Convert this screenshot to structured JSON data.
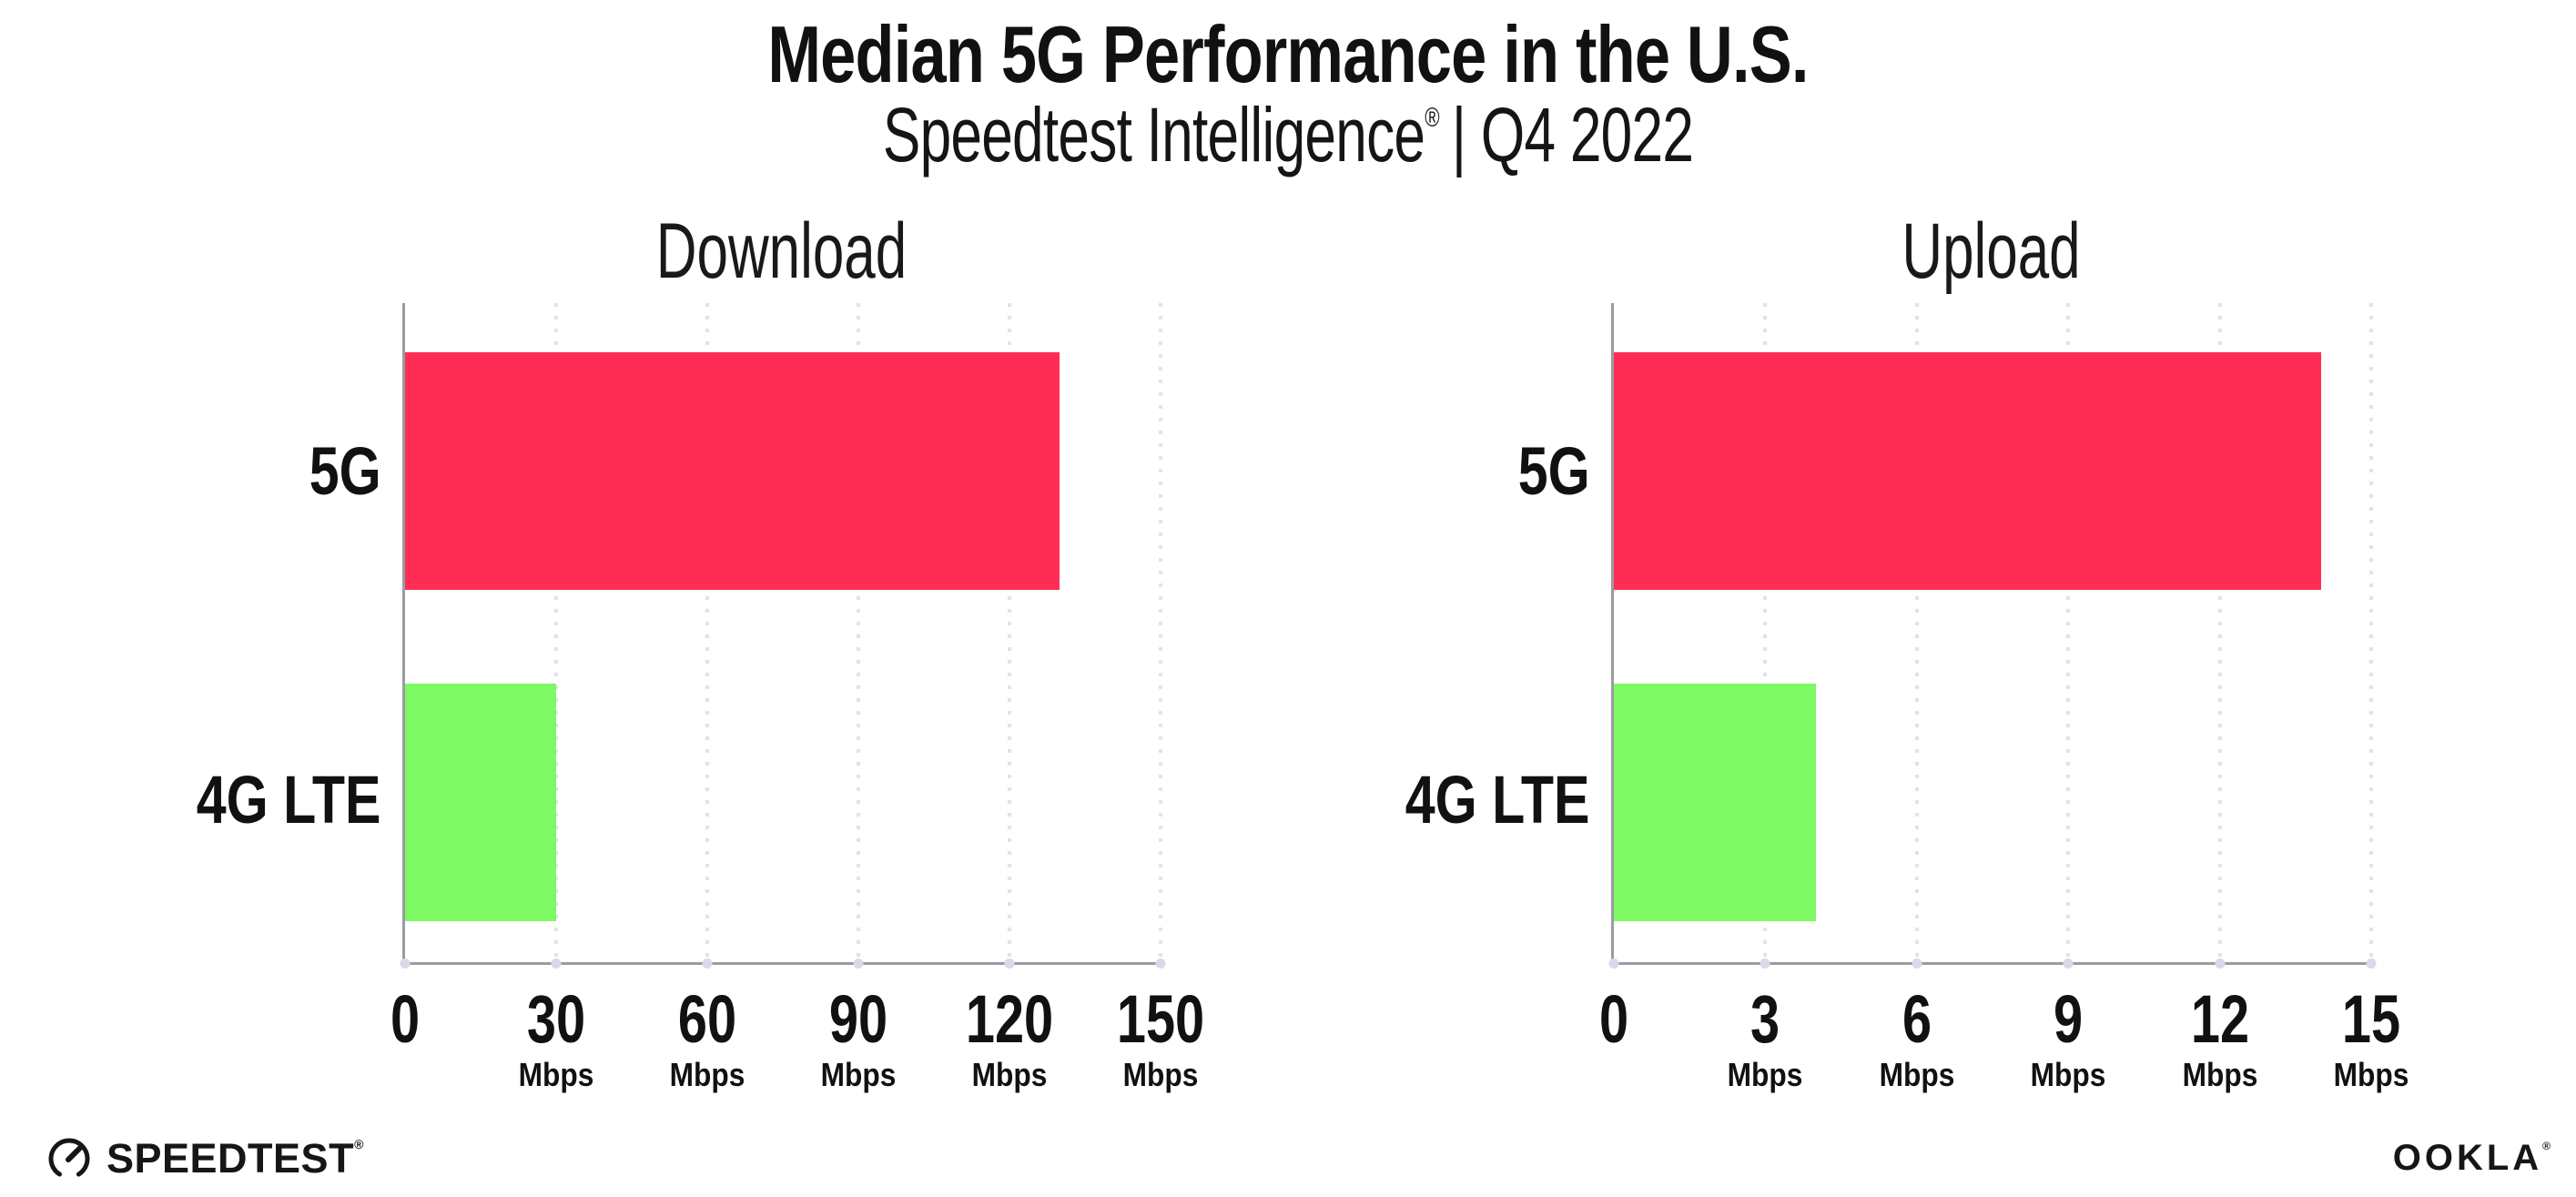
{
  "header": {
    "title": "Median 5G Performance in the U.S.",
    "subtitle_brand": "Speedtest Intelligence",
    "subtitle_reg_mark": "®",
    "subtitle_rest": "| Q4 2022"
  },
  "chart_data": [
    {
      "type": "bar",
      "orientation": "horizontal",
      "title": "Download",
      "categories": [
        "5G",
        "4G LTE"
      ],
      "values": [
        130,
        30
      ],
      "unit": "Mbps",
      "xlim": [
        0,
        150
      ],
      "xticks": [
        0,
        30,
        60,
        90,
        120,
        150
      ],
      "bar_colors": [
        "#ff2d55",
        "#7dfa63"
      ],
      "grid": "dotted-vertical-gridlines",
      "legend": "none"
    },
    {
      "type": "bar",
      "orientation": "horizontal",
      "title": "Upload",
      "categories": [
        "5G",
        "4G LTE"
      ],
      "values": [
        14,
        4
      ],
      "unit": "Mbps",
      "xlim": [
        0,
        15
      ],
      "xticks": [
        0,
        3,
        6,
        9,
        12,
        15
      ],
      "bar_colors": [
        "#ff2d55",
        "#7dfa63"
      ],
      "grid": "dotted-vertical-gridlines",
      "legend": "none"
    }
  ],
  "footer": {
    "speedtest_wordmark": "SPEEDTEST",
    "speedtest_trademark": "®",
    "ookla_wordmark": "OOKLA",
    "ookla_trademark": "®"
  },
  "colors": {
    "bar_5g": "#ff2d55",
    "bar_4g_lte": "#7dfa63",
    "axis": "#9b9ba3",
    "gridline": "#e1e1ef",
    "text": "#111111"
  }
}
